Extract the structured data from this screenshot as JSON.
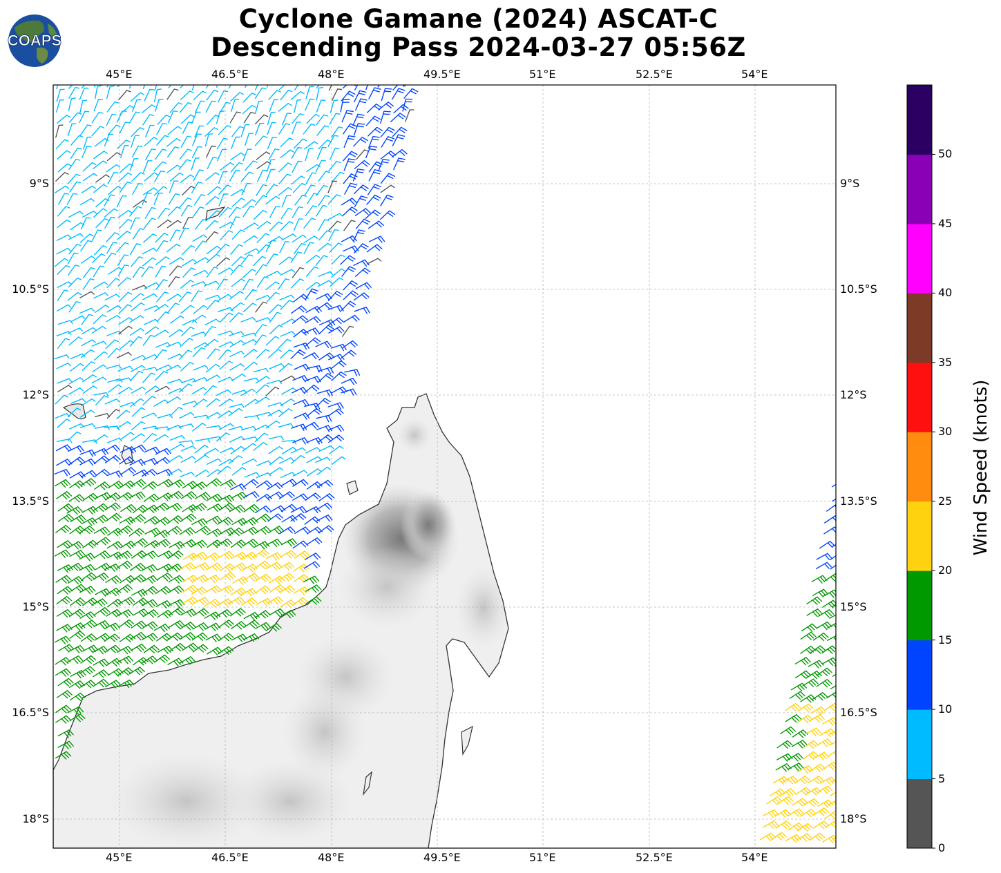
{
  "title": {
    "line1": "Cyclone Gamane (2024) ASCAT-C",
    "line2": "Descending Pass 2024-03-27 05:56Z"
  },
  "logo": {
    "text": "COAPS",
    "icon": "globe-icon"
  },
  "map": {
    "lon_ticks": [
      "45°E",
      "46.5°E",
      "48°E",
      "49.5°E",
      "51°E",
      "52.5°E",
      "54°E"
    ],
    "lat_ticks": [
      "9°S",
      "10.5°S",
      "12°S",
      "13.5°S",
      "15°S",
      "16.5°S",
      "18°S"
    ],
    "gridlines": true,
    "landmass": "Madagascar (north), terrain shaded gray",
    "wind_barbs": "ASCAT-C scatterometer swaths, colored by speed"
  },
  "colorbar": {
    "label": "Wind Speed (knots)",
    "ticks": [
      "0",
      "5",
      "10",
      "15",
      "20",
      "25",
      "30",
      "35",
      "40",
      "45",
      "50"
    ],
    "colors": [
      "#555555",
      "#00bbff",
      "#0044ff",
      "#009900",
      "#ffd20f",
      "#ff8c0f",
      "#ff1010",
      "#7d3a26",
      "#ff00ff",
      "#8a00b4",
      "#2a0062"
    ]
  }
}
